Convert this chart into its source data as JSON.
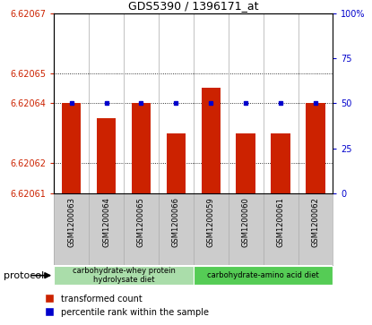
{
  "title": "GDS5390 / 1396171_at",
  "samples": [
    "GSM1200063",
    "GSM1200064",
    "GSM1200065",
    "GSM1200066",
    "GSM1200059",
    "GSM1200060",
    "GSM1200061",
    "GSM1200062"
  ],
  "red_values": [
    6.62064,
    6.620635,
    6.62064,
    6.62063,
    6.620645,
    6.62063,
    6.62063,
    6.62064
  ],
  "blue_pcts": [
    50,
    50,
    50,
    50,
    50,
    50,
    50,
    50
  ],
  "ylim_left": [
    6.62061,
    6.62067
  ],
  "ylim_right": [
    0,
    100
  ],
  "yticks_left": [
    6.62061,
    6.62062,
    6.62064,
    6.62065,
    6.62067
  ],
  "yticks_right": [
    0,
    25,
    50,
    75,
    100
  ],
  "ytick_labels_left": [
    "6.62061",
    "6.62062",
    "6.62064",
    "6.62065",
    "6.62067"
  ],
  "ytick_labels_right": [
    "0",
    "25",
    "50",
    "75",
    "100%"
  ],
  "red_color": "#cc2200",
  "blue_color": "#0000cc",
  "bar_width": 0.55,
  "protocol_groups": [
    {
      "label": "carbohydrate-whey protein\nhydrolysate diet",
      "indices": [
        0,
        1,
        2,
        3
      ],
      "color": "#aaddaa"
    },
    {
      "label": "carbohydrate-amino acid diet",
      "indices": [
        4,
        5,
        6,
        7
      ],
      "color": "#55cc55"
    }
  ],
  "protocol_label": "protocol",
  "legend_red": "transformed count",
  "legend_blue": "percentile rank within the sample",
  "bg_color": "#ffffff",
  "label_bg": "#cccccc",
  "tick_color_left": "#cc2200",
  "tick_color_right": "#0000cc",
  "grid_ticks": [
    6.62062,
    6.62064,
    6.62065
  ],
  "sep_color": "#aaaaaa"
}
